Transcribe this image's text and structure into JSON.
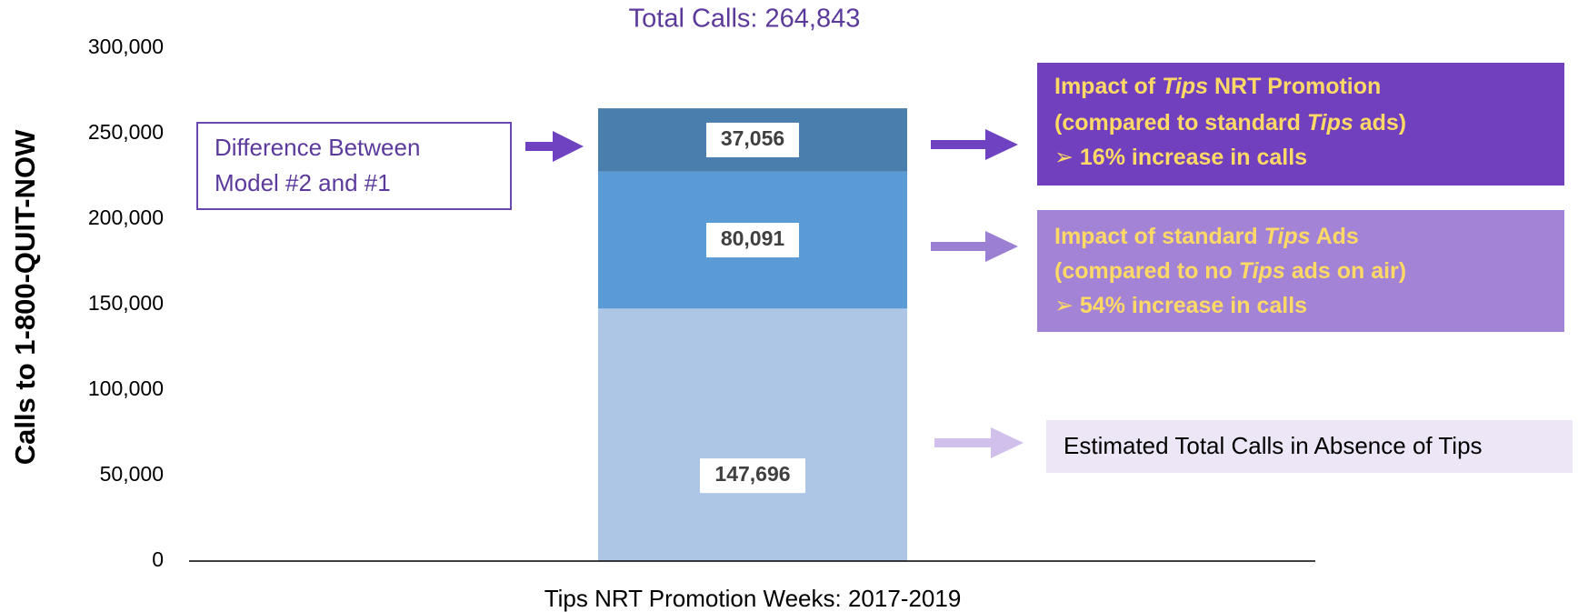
{
  "chart_data": {
    "type": "stacked_bar",
    "title": "Total Calls: 264,843",
    "ylabel": "Calls to 1-800-QUIT-NOW",
    "categories": [
      "Tips NRT Promotion Weeks: 2017-2019"
    ],
    "series": [
      {
        "color": "#adc6e6",
        "values": [
          147696
        ],
        "value_labels": [
          "147,696"
        ]
      },
      {
        "color": "#5b9bd5",
        "values": [
          80091
        ],
        "value_labels": [
          "80,091"
        ]
      },
      {
        "color": "#4a7fad",
        "values": [
          37056
        ],
        "value_labels": [
          "37,056"
        ]
      }
    ],
    "ylim": [
      0,
      300000
    ],
    "yticks": [
      0,
      {
        "value": 50000,
        "label": "50,000"
      },
      {
        "value": 100000,
        "label": "100,000"
      },
      {
        "value": 150000,
        "label": "150,000"
      },
      {
        "value": 200000,
        "label": "200,000"
      },
      {
        "value": 250000,
        "label": "250,000"
      },
      {
        "value": 300000,
        "label": "300,000"
      }
    ],
    "annotations": [
      {
        "lines": [
          [
            "Difference Between"
          ],
          [
            "Model #2 and #1"
          ]
        ]
      },
      {
        "lines": [
          [
            "Impact of ",
            "Tips",
            " NRT Promotion"
          ],
          [
            "(compared to standard ",
            "Tips",
            " ads)"
          ],
          [
            "➢  16% increase in calls"
          ]
        ]
      },
      {
        "lines": [
          [
            "Impact of standard ",
            "Tips",
            " Ads"
          ],
          [
            "(compared to no ",
            "Tips",
            " ads on air)"
          ],
          [
            "➢  54% increase in calls"
          ]
        ]
      },
      {
        "lines": [
          [
            "Estimated Total Calls in Absence of Tips"
          ]
        ]
      }
    ]
  }
}
